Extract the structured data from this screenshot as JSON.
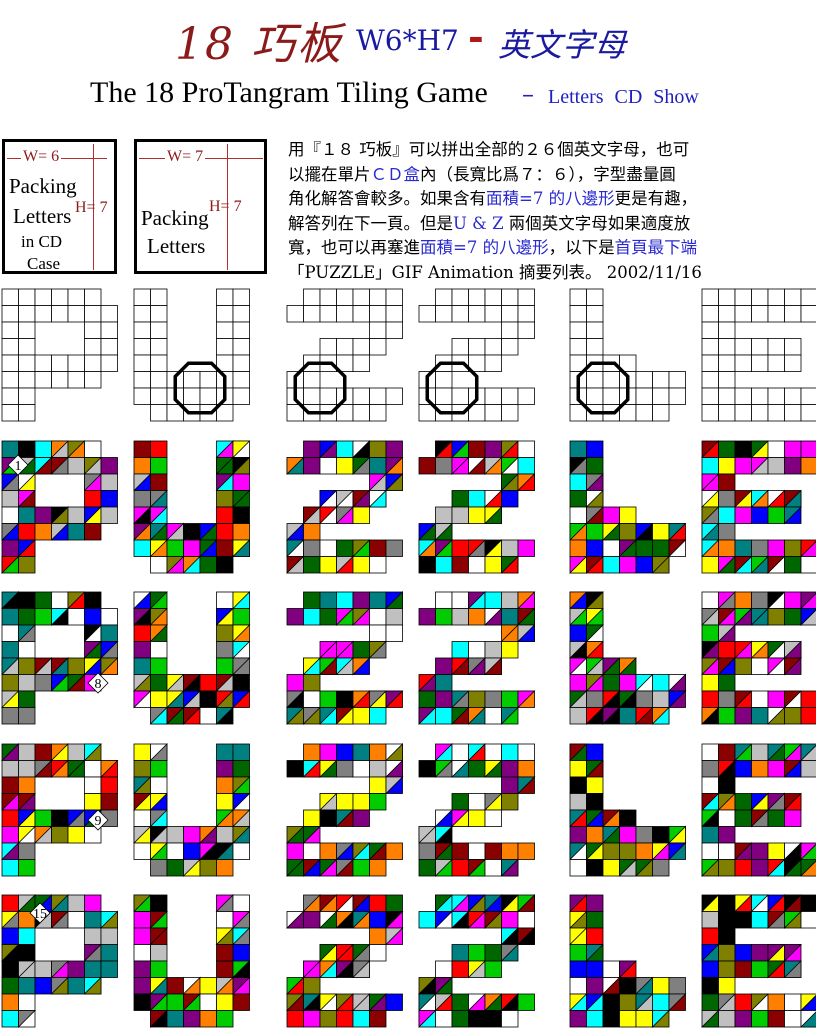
{
  "header": {
    "title_zh": "18 巧板",
    "size": "W6*H7",
    "dash": "-",
    "title_letters": "英文字母",
    "subtitle": "The 18 ProTangram Tiling Game",
    "subtitle_dash": "–",
    "subtitle_links": "Letters CD Show"
  },
  "boxes": {
    "cd_case": {
      "width_label": "W= 6",
      "height_label": "H= 7",
      "line1": "Packing",
      "line2": "Letters",
      "line3": "in CD",
      "line4": "Case"
    },
    "plain": {
      "width_label": "W= 7",
      "height_label": "H= 7",
      "line1": "Packing",
      "line2": "Letters"
    }
  },
  "description": {
    "l1a": "用『１８ 巧板』可以拼出全部的２６個英文字母，也可",
    "l2a": "以擺在單片",
    "l2b": "ＣＤ盒",
    "l2c": "內（長寬比爲７：６），字型盡量圓",
    "l3a": "角化解答會較多。如果含有",
    "l3b": "面積=7 的八邊形",
    "l3c": "更是有趣，",
    "l4a": "解答列在下一頁。但是",
    "l4b": "U & Z",
    "l4c": " 兩個英文字母如果適度放",
    "l5a": "寬，也可以再塞進",
    "l5b": "面積=7 的八邊形",
    "l5c": "，以下是",
    "l5d": "首頁最下端",
    "l6a": "「PUZZLE」GIF Animation 摘要列表。 2002/11/16"
  },
  "solution_labels": {
    "p1": "1",
    "p2": "8",
    "p3": "9",
    "p4": "15"
  },
  "grid_letters": [
    "P",
    "U",
    "Z",
    "Z",
    "L",
    "E"
  ],
  "colors": {
    "title_red": "#8b1a1a",
    "blue": "#1a1aa0",
    "piece_palette": [
      "#ff00ff",
      "#ffff00",
      "#00ffff",
      "#0000ff",
      "#ff0000",
      "#00cc00",
      "#808080",
      "#8b0000",
      "#808000",
      "#008080",
      "#800080",
      "#ff8000",
      "#c0c0c0",
      "#006600",
      "#000000"
    ]
  }
}
